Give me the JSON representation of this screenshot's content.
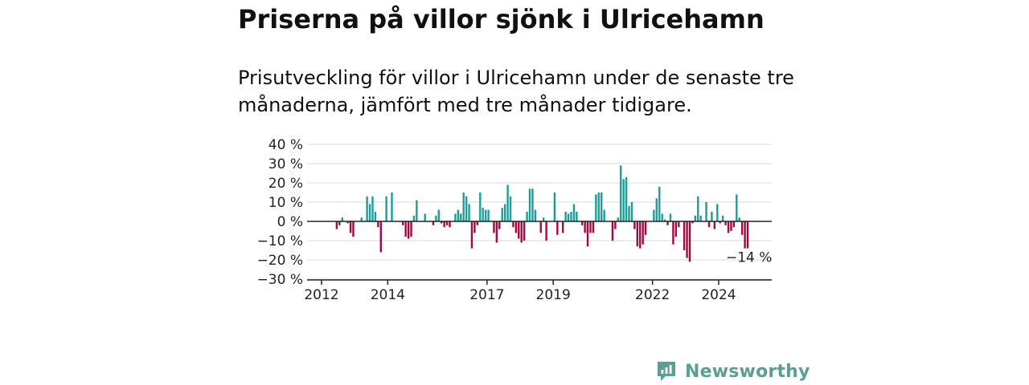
{
  "headline": "Priserna på villor sjönk i Ulricehamn",
  "subtitle": "Prisutveckling för villor i Ulricehamn under de senaste tre månaderna, jämfört med tre månader tidigare.",
  "brand": {
    "name": "Newsworthy",
    "icon": "newsworthy-logo-icon"
  },
  "colors": {
    "positive": "#1a9e97",
    "negative": "#a3093f",
    "grid": "#d9d9d9",
    "axis": "#222222"
  },
  "chart_data": {
    "type": "bar",
    "title": "",
    "xlabel": "",
    "ylabel": "",
    "ylim": [
      -30,
      40
    ],
    "y_ticks": [
      40,
      30,
      20,
      10,
      0,
      -10,
      -20,
      -30
    ],
    "y_tick_labels": [
      "40 %",
      "30 %",
      "20 %",
      "10 %",
      "0 %",
      "−10 %",
      "−20 %",
      "−30 %"
    ],
    "x_ticks": [
      {
        "label": "2012",
        "year": 2012
      },
      {
        "label": "2014",
        "year": 2014
      },
      {
        "label": "2017",
        "year": 2017
      },
      {
        "label": "2019",
        "year": 2019
      },
      {
        "label": "2022",
        "year": 2022
      },
      {
        "label": "2024",
        "year": 2024
      }
    ],
    "annotation": {
      "text": "−14 %"
    },
    "series": [
      {
        "start": "2012-06",
        "frequency": "monthly",
        "unit": "%",
        "values": [
          -4,
          -2,
          2,
          0,
          -1,
          -6,
          -8,
          0,
          0,
          2,
          0,
          13,
          9,
          13,
          5,
          -3,
          -16,
          0,
          13,
          0,
          15,
          0,
          0,
          0,
          -2,
          -8,
          -9,
          -8,
          3,
          11,
          0,
          0,
          4,
          0,
          0,
          -2,
          3,
          6,
          -1,
          -3,
          -2,
          -3,
          0,
          4,
          6,
          4,
          15,
          13,
          9,
          -14,
          -6,
          -2,
          15,
          7,
          6,
          6,
          0,
          -6,
          -11,
          -4,
          7,
          9,
          19,
          13,
          -3,
          -6,
          -9,
          -11,
          -10,
          5,
          17,
          17,
          6,
          0,
          -6,
          2,
          -10,
          0,
          0,
          15,
          -7,
          0,
          -6,
          5,
          4,
          5,
          9,
          5,
          0,
          -2,
          -6,
          -13,
          -6,
          -6,
          14,
          15,
          15,
          6,
          0,
          0,
          -10,
          -4,
          2,
          29,
          22,
          23,
          8,
          10,
          -4,
          -13,
          -14,
          -12,
          -7,
          0,
          0,
          6,
          12,
          18,
          4,
          1,
          -2,
          4,
          -12,
          -8,
          -3,
          0,
          -15,
          -19,
          -21,
          -1,
          3,
          13,
          3,
          0,
          10,
          -3,
          5,
          -4,
          9,
          -1,
          3,
          -2,
          -6,
          -5,
          -3,
          14,
          2,
          -7,
          -14,
          -14
        ]
      }
    ]
  }
}
